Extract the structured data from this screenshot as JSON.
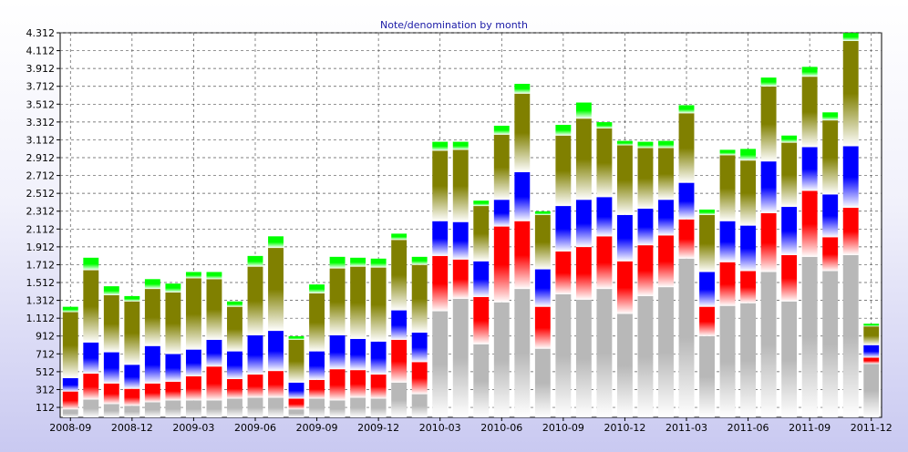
{
  "chart_data": {
    "type": "bar",
    "stacked": true,
    "title": "Note/denomination by month",
    "xlabel": "",
    "ylabel": "",
    "ylim": [
      0,
      4312
    ],
    "y_ticks": [
      "112",
      "312",
      "512",
      "712",
      "912",
      "1.112",
      "1.312",
      "1.512",
      "1.712",
      "1.912",
      "2.112",
      "2.312",
      "2.512",
      "2.712",
      "2.912",
      "3.112",
      "3.312",
      "3.512",
      "3.712",
      "3.912",
      "4.112",
      "4.312"
    ],
    "y_tick_values": [
      112,
      312,
      512,
      712,
      912,
      1112,
      1312,
      1512,
      1712,
      1912,
      2112,
      2312,
      2512,
      2712,
      2912,
      3112,
      3312,
      3512,
      3712,
      3912,
      4112,
      4312
    ],
    "x_ticks": [
      "2008-09",
      "2008-12",
      "2009-03",
      "2009-06",
      "2009-09",
      "2009-12",
      "2010-03",
      "2010-06",
      "2010-09",
      "2010-12",
      "2011-03",
      "2011-06",
      "2011-09",
      "2011-12"
    ],
    "categories": [
      "2008-09",
      "2008-10",
      "2008-11",
      "2008-12",
      "2009-01",
      "2009-02",
      "2009-03",
      "2009-04",
      "2009-05",
      "2009-06",
      "2009-07",
      "2009-08",
      "2009-09",
      "2009-10",
      "2009-11",
      "2009-12",
      "2010-01",
      "2010-02",
      "2010-03",
      "2010-04",
      "2010-05",
      "2010-06",
      "2010-07",
      "2010-08",
      "2010-09",
      "2010-10",
      "2010-11",
      "2010-12",
      "2011-01",
      "2011-02",
      "2011-03",
      "2011-04",
      "2011-05",
      "2011-06",
      "2011-07",
      "2011-08",
      "2011-09",
      "2011-10",
      "2011-11",
      "2011-12"
    ],
    "grid": true,
    "series": [
      {
        "color": "#b8b8b8",
        "values": [
          90,
          200,
          150,
          130,
          170,
          190,
          190,
          190,
          210,
          220,
          220,
          90,
          210,
          190,
          220,
          210,
          390,
          260,
          1190,
          1330,
          820,
          1290,
          1440,
          770,
          1380,
          1320,
          1440,
          1160,
          1360,
          1460,
          1780,
          910,
          1250,
          1280,
          1630,
          1300,
          1800,
          1640,
          1820,
          600
        ]
      },
      {
        "color": "#ff0000",
        "values": [
          200,
          290,
          230,
          190,
          210,
          210,
          270,
          380,
          220,
          260,
          300,
          120,
          210,
          350,
          310,
          270,
          480,
          360,
          620,
          440,
          530,
          850,
          760,
          470,
          480,
          590,
          590,
          590,
          570,
          580,
          440,
          330,
          490,
          360,
          660,
          520,
          740,
          380,
          530,
          70
        ]
      },
      {
        "color": "#0000ff",
        "values": [
          150,
          350,
          350,
          270,
          420,
          310,
          300,
          300,
          310,
          440,
          450,
          180,
          320,
          380,
          350,
          370,
          330,
          330,
          390,
          420,
          400,
          300,
          550,
          420,
          510,
          530,
          440,
          520,
          410,
          400,
          410,
          390,
          460,
          510,
          580,
          540,
          490,
          480,
          690,
          140
        ]
      },
      {
        "color": "#808000",
        "values": [
          740,
          810,
          640,
          710,
          640,
          690,
          800,
          680,
          500,
          770,
          930,
          480,
          650,
          750,
          810,
          830,
          790,
          760,
          790,
          810,
          620,
          730,
          880,
          610,
          790,
          910,
          770,
          780,
          680,
          580,
          780,
          640,
          740,
          730,
          840,
          720,
          790,
          830,
          1180,
          210
        ]
      },
      {
        "color": "#00ff00",
        "values": [
          60,
          140,
          100,
          60,
          110,
          100,
          70,
          80,
          60,
          120,
          130,
          40,
          100,
          130,
          100,
          100,
          70,
          90,
          100,
          90,
          60,
          100,
          110,
          40,
          120,
          180,
          70,
          50,
          70,
          80,
          90,
          60,
          60,
          130,
          100,
          80,
          110,
          90,
          90,
          30
        ]
      }
    ]
  }
}
